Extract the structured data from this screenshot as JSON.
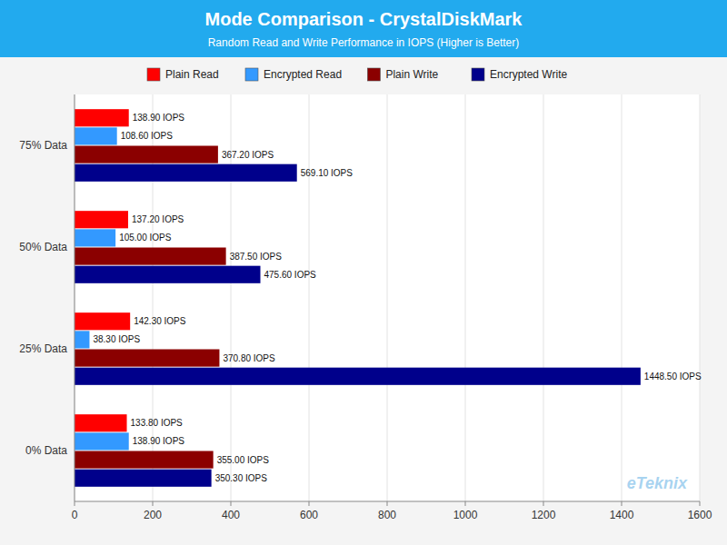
{
  "chart_data": {
    "type": "bar",
    "orientation": "horizontal",
    "title": "Mode Comparison - CrystalDiskMark",
    "subtitle": "Random Read and Write Performance in IOPS (Higher is Better)",
    "categories": [
      "75% Data",
      "50% Data",
      "25% Data",
      "0% Data"
    ],
    "series": [
      {
        "name": "Plain Read",
        "color": "#FF0000",
        "values": [
          138.9,
          137.2,
          142.3,
          133.8
        ],
        "value_labels": [
          "138.90 IOPS",
          "137.20 IOPS",
          "142.30 IOPS",
          "133.80 IOPS"
        ]
      },
      {
        "name": "Encrypted Read",
        "color": "#3399FF",
        "values": [
          108.6,
          105.0,
          38.3,
          138.9
        ],
        "value_labels": [
          "108.60 IOPS",
          "105.00 IOPS",
          "38.30 IOPS",
          "138.90 IOPS"
        ]
      },
      {
        "name": "Plain Write",
        "color": "#8B0000",
        "values": [
          367.2,
          387.5,
          370.8,
          355.0
        ],
        "value_labels": [
          "367.20 IOPS",
          "387.50 IOPS",
          "370.80 IOPS",
          "355.00 IOPS"
        ]
      },
      {
        "name": "Encrypted Write",
        "color": "#00008B",
        "values": [
          569.1,
          475.6,
          1448.5,
          350.3
        ],
        "value_labels": [
          "569.10 IOPS",
          "475.60 IOPS",
          "1448.50 IOPS",
          "350.30 IOPS"
        ]
      }
    ],
    "xlim": [
      0,
      1600
    ],
    "xticks": [
      0,
      200,
      400,
      600,
      800,
      1000,
      1200,
      1400,
      1600
    ],
    "grid": true,
    "legend": "top",
    "data_labels": true,
    "annotations": [
      "eTeknix"
    ]
  }
}
